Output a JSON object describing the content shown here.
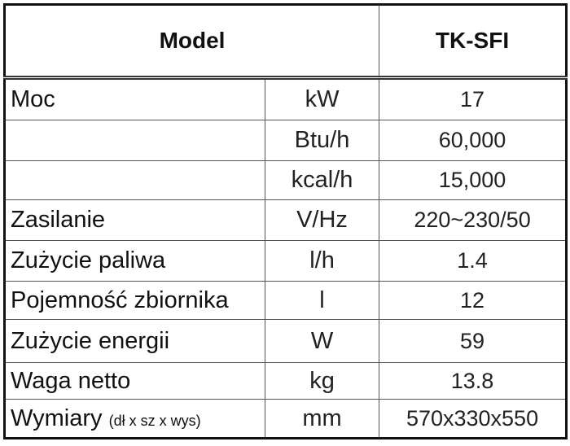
{
  "header": {
    "title": "Model",
    "model": "TK-SFI"
  },
  "table": {
    "rows": [
      {
        "label": "Moc",
        "unit": "kW",
        "value": "17"
      },
      {
        "unit": "Btu/h",
        "value": "60,000"
      },
      {
        "unit": "kcal/h",
        "value": "15,000"
      },
      {
        "label": "Zasilanie",
        "unit": "V/Hz",
        "value": "220~230/50"
      },
      {
        "label": "Zużycie paliwa",
        "unit": "l/h",
        "value": "1.4"
      },
      {
        "label": "Pojemność zbiornika",
        "unit": "l",
        "value": "12"
      },
      {
        "label": "Zużycie energii",
        "unit": "W",
        "value": "59"
      },
      {
        "label": "Waga netto",
        "unit": "kg",
        "value": "13.8"
      },
      {
        "label": "Wymiary",
        "note": "(dł x sz x wys)",
        "unit": "mm",
        "value": "570x330x550"
      }
    ]
  }
}
